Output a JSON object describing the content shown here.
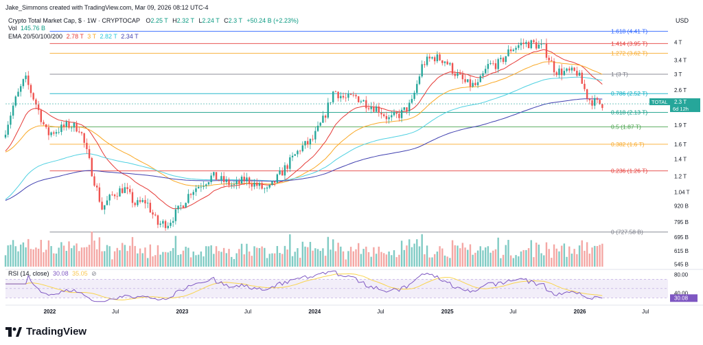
{
  "header": {
    "credit": "Jake_Simmons created with TradingView.com, Mar 09, 2026 08:12 UTC-4",
    "symbol": "Crypto Total Market Cap, $ · 1W · CRYPTOCAP",
    "ohlc": {
      "o_label": "O",
      "o": "2.25 T",
      "h_label": "H",
      "h": "2.32 T",
      "l_label": "L",
      "l": "2.24 T",
      "c_label": "C",
      "c": "2.3 T",
      "change": "+50.24 B (+2.23%)"
    },
    "vol_label": "Vol",
    "vol_value": "145.76 B",
    "ema_label": "EMA 20/50/100/200",
    "ema_values": [
      "2.78 T",
      "3 T",
      "2.82 T",
      "2.34 T"
    ]
  },
  "price_axis": {
    "currency": "USD",
    "ticks": [
      "4 T",
      "3.4 T",
      "3 T",
      "2.6 T",
      "1.9 T",
      "1.6 T",
      "1.4 T",
      "1.2 T",
      "1.04 T",
      "920 B",
      "795 B",
      "695 B",
      "615 B",
      "545 B"
    ]
  },
  "current_price": {
    "label": "TOTAL",
    "value": "2.3 T",
    "countdown": "6d 12h"
  },
  "fib_levels": [
    {
      "text": "1.618 (4.41 T)",
      "value": 4.41,
      "color": "#2962ff"
    },
    {
      "text": "1.414 (3.95 T)",
      "value": 3.95,
      "color": "#e53935"
    },
    {
      "text": "1.272 (3.62 T)",
      "value": 3.62,
      "color": "#f9a825"
    },
    {
      "text": "1 (3 T)",
      "value": 3.0,
      "color": "#787b86"
    },
    {
      "text": "0.786 (2.52 T)",
      "value": 2.52,
      "color": "#00acc1"
    },
    {
      "text": "0.618 (2.13 T)",
      "value": 2.13,
      "color": "#089981"
    },
    {
      "text": "0.5 (1.87 T)",
      "value": 1.87,
      "color": "#43a047"
    },
    {
      "text": "0.382 (1.6 T)",
      "value": 1.6,
      "color": "#f9a825"
    },
    {
      "text": "0.236 (1.26 T)",
      "value": 1.26,
      "color": "#e53935"
    },
    {
      "text": "0 (727.58 B)",
      "value": 0.72758,
      "color": "#787b86"
    }
  ],
  "rsi": {
    "label": "RSI (14, close)",
    "value": "30.08",
    "ma_value": "35.05",
    "ticks": [
      "80.00",
      "40.00"
    ]
  },
  "time_axis": [
    "2022",
    "Jul",
    "2023",
    "Jul",
    "2024",
    "Jul",
    "2025",
    "Jul",
    "2026",
    "Jul"
  ],
  "brand": "TradingView",
  "colors": {
    "up": "#26a69a",
    "down": "#ef5350",
    "ema20": "#e53935",
    "ema50": "#f9a825",
    "ema100": "#4dd0e1",
    "ema200": "#3f3faf",
    "rsi": "#7e57c2",
    "rsi_ma": "#f9d44c"
  },
  "chart_data": {
    "type": "candlestick",
    "title": "Crypto Total Market Cap, $ · 1W · CRYPTOCAP",
    "yscale": "log",
    "ylim_trillions": [
      0.52,
      5.1
    ],
    "x_range": [
      "2021-09",
      "2026-09"
    ],
    "price_anchors_trillions": [
      {
        "date": "2021-09",
        "v": 1.7
      },
      {
        "date": "2021-10",
        "v": 2.3
      },
      {
        "date": "2021-11",
        "v": 2.9
      },
      {
        "date": "2021-12",
        "v": 2.3
      },
      {
        "date": "2022-01",
        "v": 1.75
      },
      {
        "date": "2022-03",
        "v": 1.9
      },
      {
        "date": "2022-04",
        "v": 1.85
      },
      {
        "date": "2022-05",
        "v": 1.3
      },
      {
        "date": "2022-06",
        "v": 0.9
      },
      {
        "date": "2022-07",
        "v": 1.02
      },
      {
        "date": "2022-08",
        "v": 1.08
      },
      {
        "date": "2022-09",
        "v": 0.93
      },
      {
        "date": "2022-10",
        "v": 0.96
      },
      {
        "date": "2022-11",
        "v": 0.78
      },
      {
        "date": "2022-12",
        "v": 0.79
      },
      {
        "date": "2023-01",
        "v": 0.9
      },
      {
        "date": "2023-02",
        "v": 1.05
      },
      {
        "date": "2023-04",
        "v": 1.2
      },
      {
        "date": "2023-06",
        "v": 1.1
      },
      {
        "date": "2023-07",
        "v": 1.17
      },
      {
        "date": "2023-09",
        "v": 1.05
      },
      {
        "date": "2023-10",
        "v": 1.2
      },
      {
        "date": "2023-12",
        "v": 1.55
      },
      {
        "date": "2024-01",
        "v": 1.65
      },
      {
        "date": "2024-02",
        "v": 2.0
      },
      {
        "date": "2024-03",
        "v": 2.6
      },
      {
        "date": "2024-04",
        "v": 2.4
      },
      {
        "date": "2024-05",
        "v": 2.45
      },
      {
        "date": "2024-06",
        "v": 2.3
      },
      {
        "date": "2024-07",
        "v": 2.2
      },
      {
        "date": "2024-08",
        "v": 2.0
      },
      {
        "date": "2024-09",
        "v": 2.1
      },
      {
        "date": "2024-10",
        "v": 2.3
      },
      {
        "date": "2024-11",
        "v": 3.3
      },
      {
        "date": "2024-12",
        "v": 3.5
      },
      {
        "date": "2025-01",
        "v": 3.4
      },
      {
        "date": "2025-02",
        "v": 3.0
      },
      {
        "date": "2025-03",
        "v": 2.75
      },
      {
        "date": "2025-04",
        "v": 2.7
      },
      {
        "date": "2025-05",
        "v": 3.25
      },
      {
        "date": "2025-06",
        "v": 3.3
      },
      {
        "date": "2025-07",
        "v": 3.75
      },
      {
        "date": "2025-08",
        "v": 3.95
      },
      {
        "date": "2025-09",
        "v": 3.95
      },
      {
        "date": "2025-10",
        "v": 3.8
      },
      {
        "date": "2025-11",
        "v": 3.1
      },
      {
        "date": "2025-12",
        "v": 3.05
      },
      {
        "date": "2026-01",
        "v": 3.05
      },
      {
        "date": "2026-02",
        "v": 2.4
      },
      {
        "date": "2026-03",
        "v": 2.3
      }
    ]
  }
}
